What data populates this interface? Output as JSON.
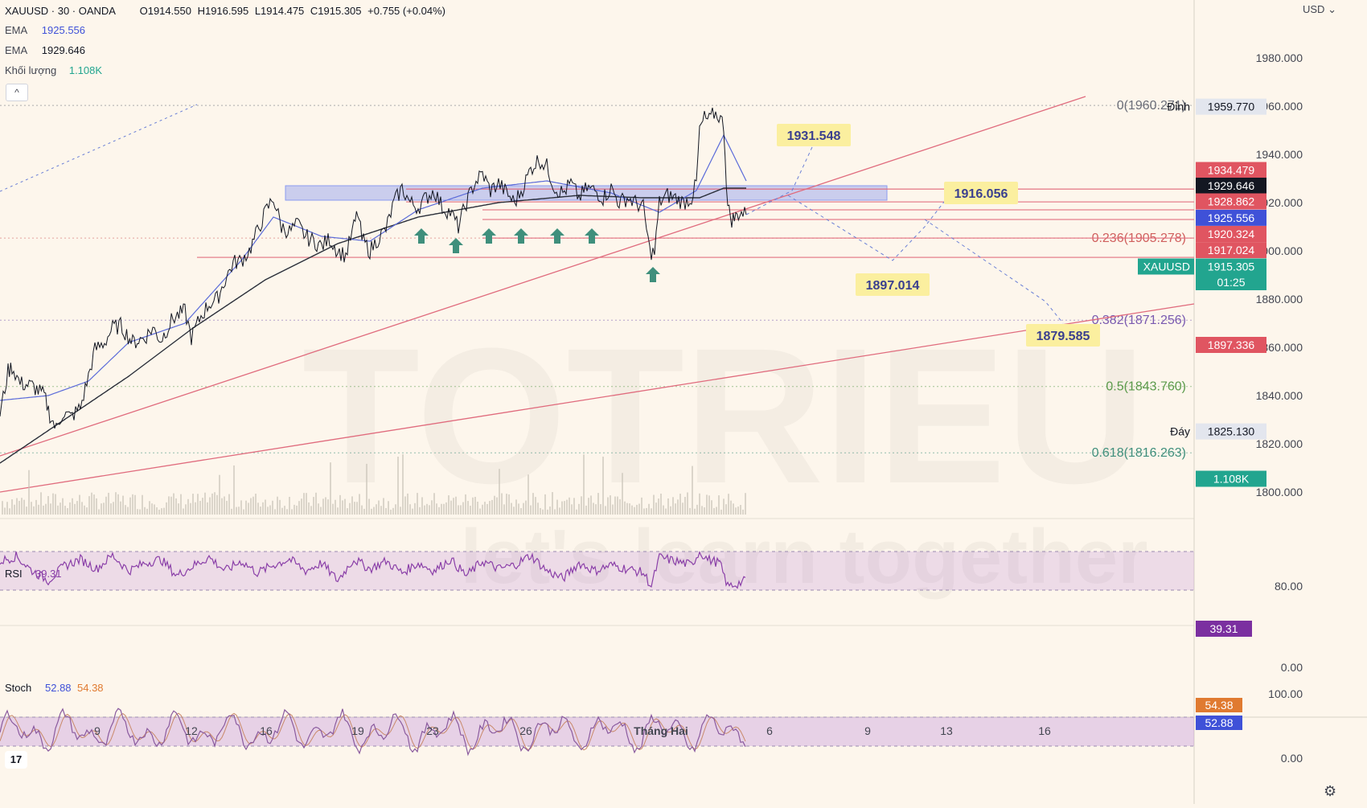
{
  "header": {
    "symbol": "XAUUSD · 30 · OANDA",
    "open": "O1914.550",
    "high": "H1916.595",
    "low": "L1914.475",
    "close": "C1915.305",
    "change": "+0.755 (+0.04%)",
    "ema1_label": "EMA",
    "ema1_value": "1925.556",
    "ema2_label": "EMA",
    "ema2_value": "1929.646",
    "volume_label": "Khối lượng",
    "volume_value": "1.108K",
    "collapse_glyph": "^",
    "currency": "USD"
  },
  "watermark": {
    "brand": "TOTRIEU",
    "slogan": "let's learn together"
  },
  "colors": {
    "background": "#fdf6ec",
    "price": "#131722",
    "ema_fast": "#5b6bd9",
    "ema_slow": "#2a2e39",
    "support": "#e06b7d",
    "zone": "#8c9cf0",
    "arrow": "#3f8f7c",
    "projection": "#6a7fd6",
    "rsi": "#8a3fa8",
    "stoch_k": "#8a5a9e",
    "stoch_d": "#c98a6a",
    "label_bg": "#fbef9f"
  },
  "chart_data": {
    "type": "line",
    "symbol": "XAUUSD",
    "timeframe": "30",
    "ylim": [
      1785,
      1995
    ],
    "yticks": [
      "1980.000",
      "1960.000",
      "1940.000",
      "1920.000",
      "1900.000",
      "1880.000",
      "1860.000",
      "1840.000",
      "1820.000",
      "1800.000"
    ],
    "xticks": [
      "9",
      "12",
      "16",
      "19",
      "23",
      "26",
      "Tháng Hai",
      "6",
      "9",
      "13",
      "16"
    ],
    "price_path": [
      [
        0,
        1832
      ],
      [
        10,
        1850
      ],
      [
        15,
        1852
      ],
      [
        25,
        1845
      ],
      [
        40,
        1844
      ],
      [
        55,
        1840
      ],
      [
        62,
        1832
      ],
      [
        70,
        1826
      ],
      [
        78,
        1833
      ],
      [
        88,
        1831
      ],
      [
        100,
        1835
      ],
      [
        110,
        1848
      ],
      [
        118,
        1859
      ],
      [
        130,
        1862
      ],
      [
        140,
        1868
      ],
      [
        150,
        1869
      ],
      [
        165,
        1862
      ],
      [
        180,
        1864
      ],
      [
        190,
        1868
      ],
      [
        200,
        1863
      ],
      [
        215,
        1872
      ],
      [
        230,
        1875
      ],
      [
        238,
        1864
      ],
      [
        250,
        1873
      ],
      [
        260,
        1878
      ],
      [
        270,
        1880
      ],
      [
        280,
        1888
      ],
      [
        290,
        1895
      ],
      [
        300,
        1896
      ],
      [
        310,
        1900
      ],
      [
        320,
        1908
      ],
      [
        330,
        1916
      ],
      [
        340,
        1922
      ],
      [
        350,
        1910
      ],
      [
        360,
        1908
      ],
      [
        370,
        1911
      ],
      [
        380,
        1906
      ],
      [
        390,
        1904
      ],
      [
        400,
        1902
      ],
      [
        410,
        1905
      ],
      [
        420,
        1900
      ],
      [
        430,
        1898
      ],
      [
        440,
        1910
      ],
      [
        445,
        1916
      ],
      [
        450,
        1905
      ],
      [
        460,
        1900
      ],
      [
        470,
        1905
      ],
      [
        480,
        1909
      ],
      [
        490,
        1920
      ],
      [
        500,
        1926
      ],
      [
        510,
        1920
      ],
      [
        520,
        1918
      ],
      [
        530,
        1922
      ],
      [
        540,
        1925
      ],
      [
        550,
        1918
      ],
      [
        560,
        1916
      ],
      [
        570,
        1910
      ],
      [
        580,
        1920
      ],
      [
        590,
        1928
      ],
      [
        600,
        1932
      ],
      [
        610,
        1925
      ],
      [
        620,
        1928
      ],
      [
        630,
        1924
      ],
      [
        640,
        1920
      ],
      [
        650,
        1926
      ],
      [
        660,
        1934
      ],
      [
        670,
        1938
      ],
      [
        680,
        1935
      ],
      [
        690,
        1926
      ],
      [
        700,
        1924
      ],
      [
        710,
        1928
      ],
      [
        720,
        1922
      ],
      [
        730,
        1926
      ],
      [
        740,
        1925
      ],
      [
        750,
        1922
      ],
      [
        760,
        1926
      ],
      [
        770,
        1920
      ],
      [
        780,
        1922
      ],
      [
        790,
        1920
      ],
      [
        800,
        1918
      ],
      [
        808,
        1900
      ],
      [
        814,
        1899
      ],
      [
        820,
        1920
      ],
      [
        830,
        1923
      ],
      [
        840,
        1922
      ],
      [
        850,
        1920
      ],
      [
        860,
        1922
      ],
      [
        866,
        1928
      ],
      [
        870,
        1950
      ],
      [
        876,
        1955
      ],
      [
        882,
        1954
      ],
      [
        888,
        1957
      ],
      [
        894,
        1956
      ],
      [
        900,
        1952
      ],
      [
        905,
        1918
      ],
      [
        910,
        1913
      ],
      [
        915,
        1914
      ],
      [
        920,
        1916
      ],
      [
        928,
        1915
      ]
    ],
    "ema_fast": [
      [
        0,
        1838
      ],
      [
        60,
        1840
      ],
      [
        110,
        1846
      ],
      [
        160,
        1862
      ],
      [
        230,
        1870
      ],
      [
        300,
        1896
      ],
      [
        340,
        1914
      ],
      [
        400,
        1906
      ],
      [
        460,
        1904
      ],
      [
        520,
        1917
      ],
      [
        600,
        1926
      ],
      [
        680,
        1929
      ],
      [
        760,
        1924
      ],
      [
        820,
        1916
      ],
      [
        866,
        1925
      ],
      [
        900,
        1948
      ],
      [
        928,
        1929
      ]
    ],
    "ema_slow": [
      [
        0,
        1812
      ],
      [
        80,
        1830
      ],
      [
        160,
        1848
      ],
      [
        240,
        1868
      ],
      [
        330,
        1888
      ],
      [
        420,
        1903
      ],
      [
        520,
        1914
      ],
      [
        620,
        1920
      ],
      [
        720,
        1923
      ],
      [
        800,
        1922
      ],
      [
        870,
        1922
      ],
      [
        900,
        1926
      ],
      [
        928,
        1926
      ]
    ],
    "horizontal_levels": [
      1925.6,
      1920.3,
      1917.0,
      1913.0,
      1905.3,
      1897.3
    ],
    "resistance_zone": [
      1921.0,
      1927.0
    ],
    "trendlines": [
      {
        "from": [
          0,
          1815
        ],
        "to": [
          1350,
          1964
        ]
      },
      {
        "from": [
          0,
          1800
        ],
        "to": [
          1485,
          1878
        ]
      }
    ],
    "support_arrows": [
      {
        "x": 524,
        "price": 1910
      },
      {
        "x": 567,
        "price": 1906
      },
      {
        "x": 608,
        "price": 1910
      },
      {
        "x": 648,
        "price": 1910
      },
      {
        "x": 693,
        "price": 1910
      },
      {
        "x": 736,
        "price": 1910
      },
      {
        "x": 812,
        "price": 1894
      }
    ],
    "projection_path": [
      [
        928,
        1915
      ],
      [
        985,
        1925
      ],
      [
        1010,
        1943
      ]
    ],
    "projection_path_2": [
      [
        980,
        1923
      ],
      [
        1110,
        1896
      ],
      [
        1150,
        1910
      ],
      [
        1178,
        1922
      ]
    ],
    "projection_path_3": [
      [
        1150,
        1913
      ],
      [
        1300,
        1879
      ],
      [
        1322,
        1870
      ]
    ],
    "projection_labels": [
      {
        "text": "1931.548",
        "x": 1012,
        "price": 1948
      },
      {
        "text": "1916.056",
        "x": 1220,
        "price": 1924
      },
      {
        "text": "1897.014",
        "x": 1110,
        "price": 1886
      },
      {
        "text": "1879.585",
        "x": 1322,
        "price": 1865
      }
    ],
    "fibonacci": [
      {
        "label": "0(1960.271)",
        "price": 1960.271,
        "color": "#6a6d78"
      },
      {
        "label": "0.236(1905.278)",
        "price": 1905.278,
        "color": "#d0605e"
      },
      {
        "label": "0.382(1871.256)",
        "price": 1871.256,
        "color": "#7a5ab0"
      },
      {
        "label": "0.5(1843.760)",
        "price": 1843.76,
        "color": "#5a9a4a"
      },
      {
        "label": "0.618(1816.263)",
        "price": 1816.263,
        "color": "#3f8f7c"
      }
    ],
    "axis_badges": [
      {
        "text": "1959.770",
        "price": 1959.77,
        "bg": "#e3e6ee",
        "fg": "#131722",
        "side_label": "Đỉnh"
      },
      {
        "text": "1934.479",
        "price": 1933.5,
        "bg": "#e05561",
        "fg": "#ffffff"
      },
      {
        "text": "1929.646",
        "price": 1927.0,
        "bg": "#131722",
        "fg": "#ffffff"
      },
      {
        "text": "1928.862",
        "price": 1920.5,
        "bg": "#e05561",
        "fg": "#ffffff"
      },
      {
        "text": "1925.556",
        "price": 1913.7,
        "bg": "#3f51d8",
        "fg": "#ffffff"
      },
      {
        "text": "1920.324",
        "price": 1907.0,
        "bg": "#e05561",
        "fg": "#ffffff"
      },
      {
        "text": "1917.024",
        "price": 1900.3,
        "bg": "#e05561",
        "fg": "#ffffff"
      },
      {
        "text": "1915.305",
        "price": 1893.5,
        "bg": "#22a58f",
        "fg": "#ffffff",
        "side_label": "XAUUSD"
      },
      {
        "text": "01:25",
        "price": 1887.0,
        "bg": "#22a58f",
        "fg": "#ffffff"
      },
      {
        "text": "1897.336",
        "price": 1861.0,
        "bg": "#e05561",
        "fg": "#ffffff"
      },
      {
        "text": "1825.130",
        "price": 1825.13,
        "bg": "#e3e6ee",
        "fg": "#131722",
        "side_label": "Đáy"
      },
      {
        "text": "1.108K",
        "price": 1805.5,
        "bg": "#22a58f",
        "fg": "#ffffff"
      }
    ],
    "volume_bars": [],
    "rsi": {
      "label": "RSI",
      "value": "39.31",
      "levels": [
        "80.00",
        "0.00"
      ],
      "band": [
        30,
        70
      ],
      "path": [
        [
          0,
          60
        ],
        [
          20,
          65
        ],
        [
          40,
          50
        ],
        [
          60,
          40
        ],
        [
          80,
          55
        ],
        [
          100,
          62
        ],
        [
          120,
          52
        ],
        [
          140,
          66
        ],
        [
          160,
          50
        ],
        [
          180,
          58
        ],
        [
          200,
          62
        ],
        [
          220,
          45
        ],
        [
          240,
          55
        ],
        [
          260,
          64
        ],
        [
          280,
          50
        ],
        [
          300,
          60
        ],
        [
          320,
          48
        ],
        [
          340,
          56
        ],
        [
          360,
          62
        ],
        [
          380,
          50
        ],
        [
          400,
          58
        ],
        [
          420,
          40
        ],
        [
          440,
          62
        ],
        [
          460,
          52
        ],
        [
          480,
          60
        ],
        [
          500,
          48
        ],
        [
          520,
          58
        ],
        [
          540,
          50
        ],
        [
          560,
          62
        ],
        [
          580,
          45
        ],
        [
          600,
          60
        ],
        [
          620,
          52
        ],
        [
          640,
          56
        ],
        [
          660,
          66
        ],
        [
          680,
          50
        ],
        [
          700,
          42
        ],
        [
          720,
          58
        ],
        [
          740,
          50
        ],
        [
          760,
          56
        ],
        [
          780,
          52
        ],
        [
          800,
          48
        ],
        [
          810,
          34
        ],
        [
          820,
          64
        ],
        [
          840,
          60
        ],
        [
          860,
          56
        ],
        [
          870,
          70
        ],
        [
          880,
          62
        ],
        [
          895,
          58
        ],
        [
          905,
          34
        ],
        [
          915,
          36
        ],
        [
          928,
          40
        ]
      ]
    },
    "stoch": {
      "label": "Stoch",
      "k_value": "52.88",
      "d_value": "54.38",
      "levels": [
        "100.00",
        "0.00"
      ],
      "band": [
        20,
        80
      ]
    }
  }
}
